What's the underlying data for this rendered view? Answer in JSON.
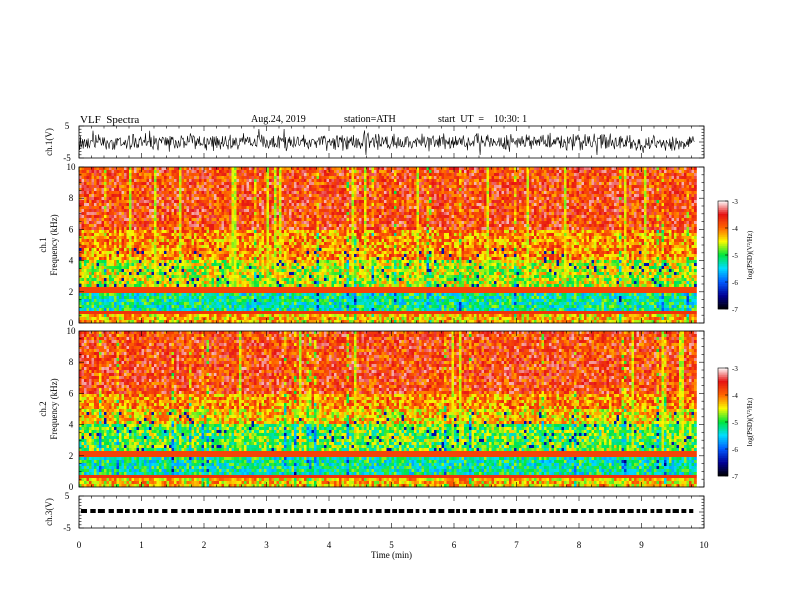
{
  "header": {
    "title": "VLF  Spectra",
    "date": "Aug.24, 2019",
    "station": "station=ATH",
    "start_ut": "start  UT  =    10:30: 1"
  },
  "chart_data": [
    {
      "type": "line",
      "title": "",
      "ylabel": "ch.1(V)",
      "xlabel": "",
      "xlim": [
        0,
        10
      ],
      "ylim": [
        -5,
        5
      ],
      "yticks": [
        "5",
        "-5"
      ],
      "x_data_end": 9.85,
      "series": [
        {
          "values_description_note": null
        }
      ]
    },
    {
      "type": "heatmap",
      "ylabel": "ch.1 Frequency (kHz)",
      "ylim": [
        0,
        10
      ],
      "yticks": [
        "0",
        "2",
        "4",
        "6",
        "8",
        "10"
      ],
      "xlim": [
        0,
        10
      ],
      "x_data_end": 9.85,
      "colorbar": {
        "label": "log(PSD)(V²/Hz)",
        "range": [
          -7,
          -3
        ],
        "ticks": [
          "-3",
          "-4",
          "-5",
          "-6",
          "-7"
        ]
      }
    },
    {
      "type": "heatmap",
      "ylabel": "ch.2 Frequency (kHz)",
      "ylim": [
        0,
        10
      ],
      "yticks": [
        "0",
        "2",
        "4",
        "6",
        "8",
        "10"
      ],
      "xlim": [
        0,
        10
      ],
      "x_data_end": 9.85,
      "colorbar": {
        "label": "log(PSD)(V²/Hz)",
        "range": [
          -7,
          -3
        ],
        "ticks": [
          "-3",
          "-4",
          "-5",
          "-6",
          "-7"
        ]
      }
    },
    {
      "type": "line",
      "ylabel": "ch.3(V)",
      "ylim": [
        -5,
        5
      ],
      "yticks": [
        "5",
        "-5"
      ],
      "xlim": [
        0,
        10
      ],
      "x_data_end": 9.85,
      "xlabel": "Time  (min)",
      "xticks": [
        "0",
        "1",
        "2",
        "3",
        "4",
        "5",
        "6",
        "7",
        "8",
        "9",
        "10"
      ]
    }
  ]
}
